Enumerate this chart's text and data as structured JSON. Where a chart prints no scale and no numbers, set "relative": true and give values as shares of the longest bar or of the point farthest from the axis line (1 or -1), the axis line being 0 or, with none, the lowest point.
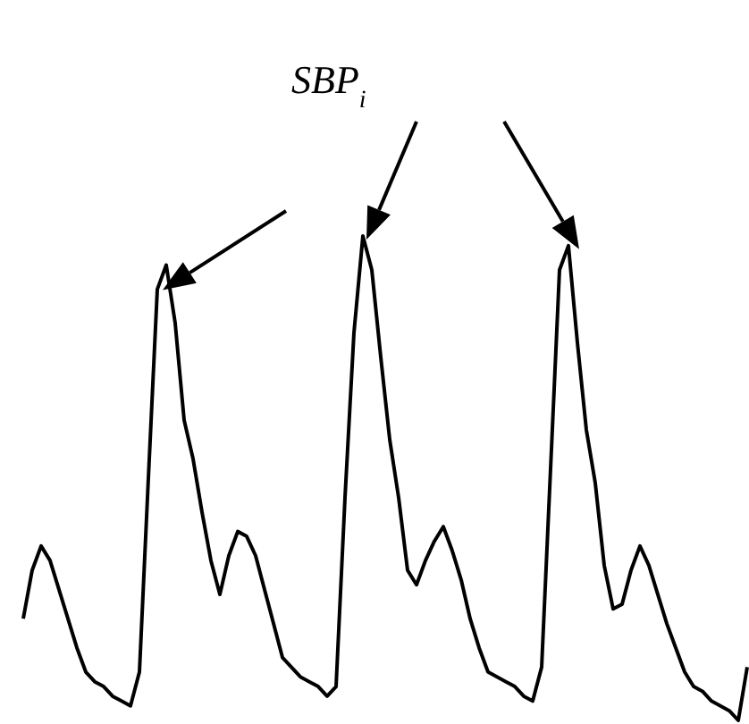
{
  "chart_data": {
    "type": "line",
    "relative": true,
    "marker": "none",
    "line_style": "solid",
    "annotations": [
      "SBP$_{i}$"
    ],
    "categories": [
      null,
      null,
      null,
      null,
      null,
      null,
      null,
      null,
      null,
      null,
      null,
      null,
      null,
      null,
      null,
      null,
      null,
      null,
      null,
      null,
      null,
      null,
      null,
      null,
      null,
      null,
      null,
      null,
      null,
      null,
      null,
      null,
      null,
      null,
      null,
      null,
      null,
      null,
      null,
      null,
      null,
      null,
      null,
      null,
      null,
      null,
      null,
      null,
      null,
      null,
      null,
      null,
      null,
      null,
      null,
      null,
      null,
      null,
      null,
      null,
      null,
      null,
      null,
      null,
      null,
      null,
      null,
      null,
      null,
      null,
      null,
      null,
      null,
      null,
      null,
      null,
      null,
      null,
      null,
      null,
      null,
      null
    ],
    "series": [
      {
        "color": "#000000",
        "values": [
          0.21,
          0.31,
          0.36,
          0.33,
          0.27,
          0.21,
          0.15,
          0.1,
          0.08,
          0.07,
          0.05,
          0.04,
          0.03,
          0.1,
          0.5,
          0.89,
          0.94,
          0.82,
          0.62,
          0.54,
          0.43,
          0.33,
          0.26,
          0.34,
          0.39,
          0.38,
          0.34,
          0.27,
          0.2,
          0.13,
          0.11,
          0.09,
          0.08,
          0.07,
          0.05,
          0.07,
          0.46,
          0.8,
          1,
          0.93,
          0.75,
          0.58,
          0.46,
          0.31,
          0.28,
          0.33,
          0.37,
          0.4,
          0.35,
          0.29,
          0.21,
          0.15,
          0.1,
          0.09,
          0.08,
          0.07,
          0.05,
          0.04,
          0.11,
          0.52,
          0.93,
          0.98,
          0.78,
          0.6,
          0.49,
          0.32,
          0.23,
          0.24,
          0.31,
          0.36,
          0.32,
          0.26,
          0.2,
          0.15,
          0.1,
          0.07,
          0.06,
          0.04,
          0.03,
          0.02,
          0,
          0.11
        ]
      }
    ]
  }
}
